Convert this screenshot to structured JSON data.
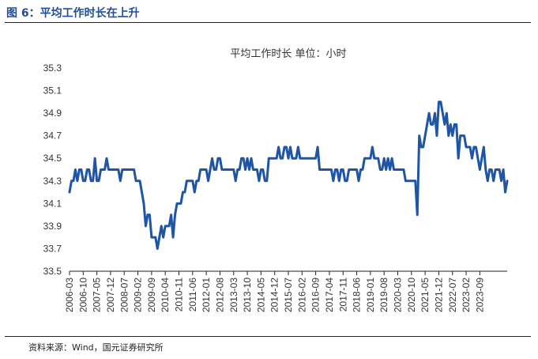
{
  "figure": {
    "label": "图 6：平均工作时长在上升",
    "source": "资料来源：Wind，国元证券研究所"
  },
  "colors": {
    "line": "#1f55a5",
    "heading": "#1f4e9c",
    "axis": "#222222"
  },
  "chart_data": {
    "type": "line",
    "title": "平均工作时长 单位：小时",
    "xlabel": "",
    "ylabel": "",
    "ylim": [
      33.5,
      35.3
    ],
    "yticks": [
      "33.5",
      "33.7",
      "33.9",
      "34.1",
      "34.3",
      "34.5",
      "34.7",
      "34.9",
      "35.1",
      "35.3"
    ],
    "xticks": [
      "2006-03",
      "2006-10",
      "2007-05",
      "2007-12",
      "2008-07",
      "2009-02",
      "2009-09",
      "2010-04",
      "2010-11",
      "2011-06",
      "2012-01",
      "2012-08",
      "2013-03",
      "2013-10",
      "2014-05",
      "2014-12",
      "2015-07",
      "2016-02",
      "2016-09",
      "2017-04",
      "2017-11",
      "2018-06",
      "2019-01",
      "2019-08",
      "2020-03",
      "2020-10",
      "2021-05",
      "2021-12",
      "2022-07",
      "2023-02",
      "2023-09"
    ],
    "grid": false,
    "series": [
      {
        "start": "2006-03",
        "frequency": "monthly",
        "values": [
          34.2,
          34.3,
          34.3,
          34.4,
          34.3,
          34.4,
          34.4,
          34.3,
          34.3,
          34.4,
          34.4,
          34.3,
          34.3,
          34.5,
          34.3,
          34.3,
          34.4,
          34.4,
          34.4,
          34.5,
          34.4,
          34.4,
          34.4,
          34.4,
          34.4,
          34.4,
          34.3,
          34.4,
          34.4,
          34.4,
          34.4,
          34.4,
          34.4,
          34.4,
          34.3,
          34.3,
          34.3,
          34.2,
          34.1,
          33.9,
          34.0,
          34.0,
          33.8,
          33.8,
          33.8,
          33.7,
          33.8,
          33.9,
          33.8,
          33.9,
          33.9,
          33.9,
          34.0,
          33.8,
          34.0,
          34.1,
          34.1,
          34.1,
          34.2,
          34.2,
          34.3,
          34.3,
          34.3,
          34.3,
          34.2,
          34.3,
          34.3,
          34.4,
          34.4,
          34.4,
          34.4,
          34.3,
          34.4,
          34.5,
          34.4,
          34.4,
          34.5,
          34.5,
          34.4,
          34.4,
          34.4,
          34.4,
          34.4,
          34.4,
          34.4,
          34.3,
          34.4,
          34.4,
          34.5,
          34.5,
          34.4,
          34.5,
          34.4,
          34.5,
          34.4,
          34.4,
          34.4,
          34.3,
          34.4,
          34.4,
          34.3,
          34.3,
          34.5,
          34.5,
          34.5,
          34.5,
          34.5,
          34.6,
          34.5,
          34.5,
          34.6,
          34.6,
          34.5,
          34.6,
          34.5,
          34.5,
          34.5,
          34.6,
          34.5,
          34.5,
          34.5,
          34.5,
          34.5,
          34.5,
          34.5,
          34.5,
          34.5,
          34.6,
          34.4,
          34.4,
          34.4,
          34.4,
          34.4,
          34.4,
          34.4,
          34.3,
          34.4,
          34.4,
          34.3,
          34.4,
          34.4,
          34.3,
          34.3,
          34.4,
          34.4,
          34.4,
          34.4,
          34.4,
          34.3,
          34.4,
          34.4,
          34.5,
          34.5,
          34.5,
          34.5,
          34.6,
          34.5,
          34.5,
          34.5,
          34.4,
          34.4,
          34.5,
          34.4,
          34.5,
          34.4,
          34.5,
          34.4,
          34.4,
          34.4,
          34.4,
          34.4,
          34.4,
          34.3,
          34.3,
          34.3,
          34.3,
          34.3,
          34.3,
          34.0,
          34.7,
          34.6,
          34.6,
          34.7,
          34.8,
          34.9,
          34.8,
          34.8,
          34.9,
          34.7,
          35.0,
          35.0,
          34.9,
          34.8,
          34.9,
          34.7,
          34.8,
          34.7,
          34.8,
          34.8,
          34.5,
          34.7,
          34.7,
          34.7,
          34.6,
          34.6,
          34.6,
          34.5,
          34.6,
          34.6,
          34.5,
          34.4,
          34.5,
          34.6,
          34.4,
          34.3,
          34.4,
          34.4,
          34.3,
          34.4,
          34.4,
          34.4,
          34.3,
          34.4,
          34.2,
          34.3
        ]
      }
    ]
  }
}
